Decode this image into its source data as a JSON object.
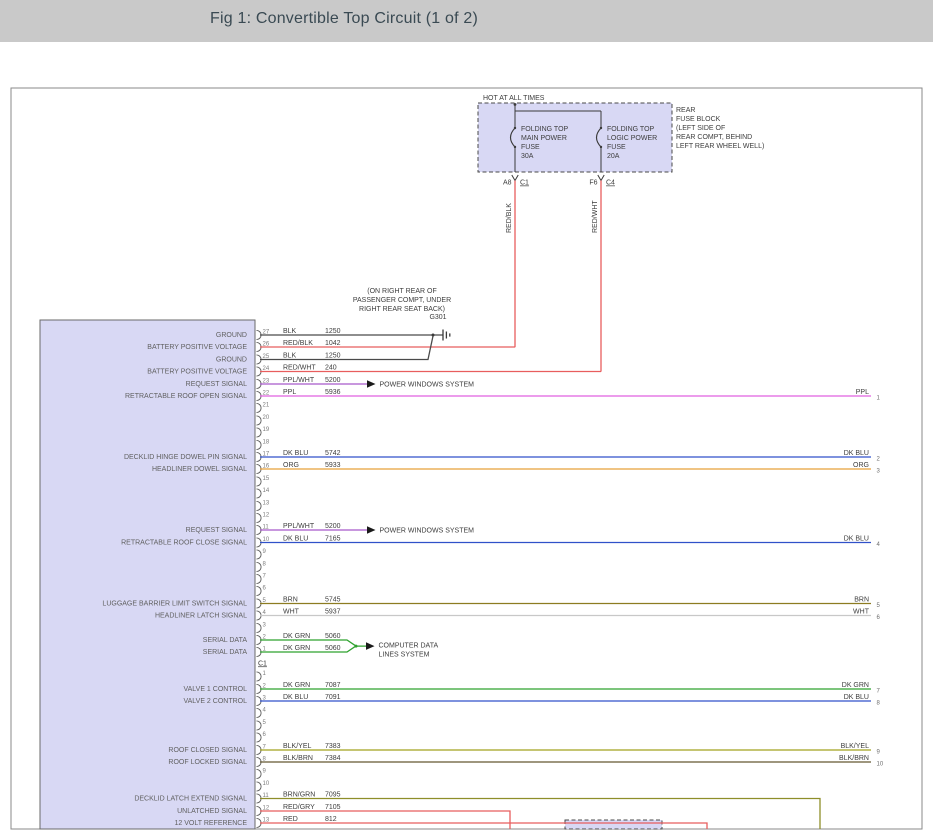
{
  "header": {
    "title": "Fig 1: Convertible Top Circuit (1 of 2)"
  },
  "diagram": {
    "power": {
      "hot_label": "HOT AT ALL TIMES",
      "fuse_block_note": [
        "REAR",
        "FUSE BLOCK",
        "(LEFT SIDE OF",
        "REAR COMPT, BEHIND",
        "LEFT REAR WHEEL WELL)"
      ],
      "fuses": [
        {
          "name_lines": [
            "FOLDING TOP",
            "MAIN POWER",
            "FUSE"
          ],
          "rating": "30A",
          "terminal": "A8",
          "connector": "C1",
          "feed_wire": "RED/BLK"
        },
        {
          "name_lines": [
            "FOLDING TOP",
            "LOGIC POWER",
            "FUSE"
          ],
          "rating": "20A",
          "terminal": "F6",
          "connector": "C4",
          "feed_wire": "RED/WHT"
        }
      ]
    },
    "ground": {
      "name": "G301",
      "note_lines": [
        "(ON RIGHT REAR OF",
        "PASSENGER COMPT, UNDER",
        "RIGHT REAR SEAT BACK)"
      ]
    },
    "systems": {
      "power_windows": [
        "POWER WINDOWS SYSTEM"
      ],
      "data_lines": [
        "COMPUTER DATA",
        "LINES SYSTEM"
      ]
    },
    "module_connectors": [
      {
        "label": "C1",
        "pins": [
          {
            "pin": "27",
            "signal": "GROUND",
            "color": "BLK",
            "circuit": "1250",
            "dest": "ground_main"
          },
          {
            "pin": "26",
            "signal": "BATTERY POSITIVE VOLTAGE",
            "color": "RED/BLK",
            "circuit": "1042",
            "dest": "fuse_feed",
            "fuse": 0
          },
          {
            "pin": "25",
            "signal": "GROUND",
            "color": "BLK",
            "circuit": "1250",
            "dest": "ground_join"
          },
          {
            "pin": "24",
            "signal": "BATTERY POSITIVE VOLTAGE",
            "color": "RED/WHT",
            "circuit": "240",
            "dest": "fuse_feed",
            "fuse": 1
          },
          {
            "pin": "23",
            "signal": "REQUEST SIGNAL",
            "color": "PPL/WHT",
            "circuit": "5200",
            "dest": "arrow",
            "system": "power_windows"
          },
          {
            "pin": "22",
            "signal": "RETRACTABLE ROOF OPEN SIGNAL",
            "color": "PPL",
            "circuit": "5936",
            "dest": "edge",
            "exit": "1"
          },
          {
            "pin": "21"
          },
          {
            "pin": "20"
          },
          {
            "pin": "19"
          },
          {
            "pin": "18"
          },
          {
            "pin": "17",
            "signal": "DECKLID HINGE DOWEL PIN SIGNAL",
            "color": "DK BLU",
            "circuit": "5742",
            "dest": "edge",
            "exit": "2"
          },
          {
            "pin": "16",
            "signal": "HEADLINER DOWEL SIGNAL",
            "color": "ORG",
            "circuit": "5933",
            "dest": "edge",
            "exit": "3"
          },
          {
            "pin": "15"
          },
          {
            "pin": "14"
          },
          {
            "pin": "13"
          },
          {
            "pin": "12"
          },
          {
            "pin": "11",
            "signal": "REQUEST SIGNAL",
            "color": "PPL/WHT",
            "circuit": "5200",
            "dest": "arrow",
            "system": "power_windows"
          },
          {
            "pin": "10",
            "signal": "RETRACTABLE ROOF CLOSE SIGNAL",
            "color": "DK BLU",
            "circuit": "7165",
            "dest": "edge",
            "exit": "4"
          },
          {
            "pin": "9"
          },
          {
            "pin": "8"
          },
          {
            "pin": "7"
          },
          {
            "pin": "6"
          },
          {
            "pin": "5",
            "signal": "LUGGAGE BARRIER LIMIT SWITCH SIGNAL",
            "color": "BRN",
            "circuit": "5745",
            "dest": "edge",
            "exit": "5"
          },
          {
            "pin": "4",
            "signal": "HEADLINER LATCH SIGNAL",
            "color": "WHT",
            "circuit": "5937",
            "dest": "edge",
            "exit": "6"
          },
          {
            "pin": "3"
          },
          {
            "pin": "2",
            "signal": "SERIAL DATA",
            "color": "DK GRN",
            "circuit": "5060",
            "dest": "data_arrow",
            "system": "data_lines"
          },
          {
            "pin": "1",
            "signal": "SERIAL DATA",
            "color": "DK GRN",
            "circuit": "5060",
            "dest": "data_join"
          }
        ]
      },
      {
        "label": "",
        "pins": [
          {
            "pin": "1"
          },
          {
            "pin": "2",
            "signal": "VALVE 1 CONTROL",
            "color": "DK GRN",
            "circuit": "7087",
            "dest": "edge",
            "exit": "7"
          },
          {
            "pin": "3",
            "signal": "VALVE 2 CONTROL",
            "color": "DK BLU",
            "circuit": "7091",
            "dest": "edge",
            "exit": "8"
          },
          {
            "pin": "4"
          },
          {
            "pin": "5"
          },
          {
            "pin": "6"
          },
          {
            "pin": "7",
            "signal": "ROOF CLOSED SIGNAL",
            "color": "BLK/YEL",
            "circuit": "7383",
            "dest": "edge",
            "exit": "9"
          },
          {
            "pin": "8",
            "signal": "ROOF LOCKED SIGNAL",
            "color": "BLK/BRN",
            "circuit": "7384",
            "dest": "edge",
            "exit": "10"
          },
          {
            "pin": "9"
          },
          {
            "pin": "10"
          },
          {
            "pin": "11",
            "signal": "DECKLID LATCH EXTEND SIGNAL",
            "color": "BRN/GRN",
            "circuit": "7095",
            "dest": "down"
          },
          {
            "pin": "12",
            "signal": "UNLATCHED SIGNAL",
            "color": "RED/GRY",
            "circuit": "7105",
            "dest": "down"
          },
          {
            "pin": "13",
            "signal": "12 VOLT REFERENCE",
            "color": "RED",
            "circuit": "812",
            "dest": "down"
          }
        ]
      }
    ],
    "wire_colors": {
      "BLK": "#4a4a4a",
      "RED/BLK": "#e85d5d",
      "RED/WHT": "#e85d5d",
      "PPL/WHT": "#a659c9",
      "PPL": "#e160e1",
      "DK BLU": "#3051c9",
      "ORG": "#e8a039",
      "BRN": "#8d7c21",
      "WHT": "#c8c8c8",
      "DK GRN": "#2ea22e",
      "BLK/YEL": "#a2a21f",
      "BLK/BRN": "#645831",
      "BRN/GRN": "#8e8e2a",
      "RED/GRY": "#e85d5d",
      "RED": "#e85d5d"
    }
  }
}
